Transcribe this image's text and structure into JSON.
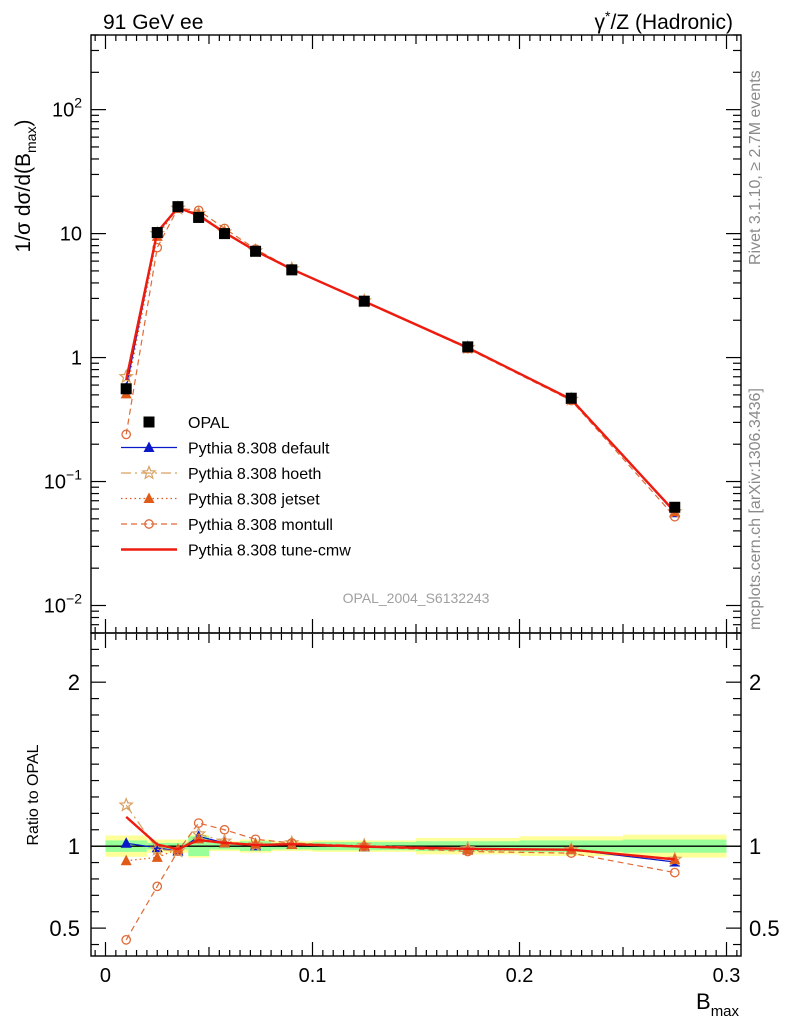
{
  "header": {
    "left": "91 GeV ee",
    "right_prefix": "γ",
    "right_sup": "*",
    "right_suffix": "/Z (Hadronic)"
  },
  "side_labels": {
    "rivet": "Rivet 3.1.10, ≥ 2.7M events",
    "mcplots": "mcplots.cern.ch [arXiv:1306.3436]"
  },
  "analysis_label": "OPAL_2004_S6132243",
  "axes": {
    "ylabel_main_prefix": "1/σ dσ/d(B",
    "ylabel_main_sub": "max",
    "ylabel_main_suffix": ")",
    "ylabel_ratio": "Ratio to OPAL",
    "xlabel_main": "B",
    "xlabel_sub": "max"
  },
  "colors": {
    "opal": "#000000",
    "default": "#0a18c8",
    "hoeth": "#d9a060",
    "jetset": "#e05a18",
    "montull": "#e06a38",
    "tunecmw": "#ee1c10",
    "band_outer": "#ffff99",
    "band_inner": "#99ff99"
  },
  "chart_data": {
    "type": "line",
    "x": [
      0.01,
      0.025,
      0.035,
      0.045,
      0.0575,
      0.0725,
      0.09,
      0.125,
      0.175,
      0.225,
      0.275
    ],
    "bins": [
      [
        0.0,
        0.02
      ],
      [
        0.02,
        0.03
      ],
      [
        0.03,
        0.04
      ],
      [
        0.04,
        0.05
      ],
      [
        0.05,
        0.065
      ],
      [
        0.065,
        0.08
      ],
      [
        0.08,
        0.1
      ],
      [
        0.1,
        0.15
      ],
      [
        0.15,
        0.2
      ],
      [
        0.2,
        0.25
      ],
      [
        0.25,
        0.3
      ]
    ],
    "xlim": [
      -0.007,
      0.307
    ],
    "ylim_main": [
      0.006,
      400
    ],
    "ylog": true,
    "ylim_ratio": [
      0.33,
      2.3
    ],
    "x_ticks": [
      {
        "value": 0,
        "label": "0"
      },
      {
        "value": 0.1,
        "label": "0.1"
      },
      {
        "value": 0.2,
        "label": "0.2"
      },
      {
        "value": 0.3,
        "label": "0.3"
      }
    ],
    "y_ticks_main": [
      {
        "value": 0.01,
        "base": "10",
        "exp": "−2"
      },
      {
        "value": 0.1,
        "base": "10",
        "exp": "−1"
      },
      {
        "value": 1,
        "base": "1",
        "exp": ""
      },
      {
        "value": 10,
        "base": "10",
        "exp": ""
      },
      {
        "value": 100,
        "base": "10",
        "exp": "2"
      }
    ],
    "y_ticks_ratio": [
      {
        "value": 0.5,
        "label": "0.5"
      },
      {
        "value": 1,
        "label": "1"
      },
      {
        "value": 2,
        "label": "2"
      }
    ],
    "band_inner": [
      0.035,
      0.02,
      0.02,
      0.06,
      0.02,
      0.03,
      0.02,
      0.025,
      0.03,
      0.035,
      0.04
    ],
    "band_outer": [
      0.065,
      0.04,
      0.04,
      0.07,
      0.03,
      0.04,
      0.03,
      0.035,
      0.05,
      0.06,
      0.07
    ],
    "series": [
      {
        "key": "opal",
        "name": "OPAL",
        "style": "data",
        "values": [
          0.56,
          10.2,
          16.5,
          13.5,
          10.0,
          7.2,
          5.1,
          2.85,
          1.22,
          0.47,
          0.062
        ]
      },
      {
        "key": "default",
        "name": "Pythia 8.308 default",
        "style": "line",
        "marker": "tri",
        "dash": "",
        "values": [
          0.57,
          10.1,
          16.0,
          14.3,
          10.2,
          7.22,
          5.15,
          2.84,
          1.2,
          0.46,
          0.056
        ]
      },
      {
        "key": "hoeth",
        "name": "Pythia 8.308 hoeth",
        "style": "line",
        "marker": "star",
        "dash": "10 4 2 4",
        "values": [
          0.7,
          10.0,
          16.0,
          14.5,
          10.3,
          7.25,
          5.2,
          2.86,
          1.2,
          0.46,
          0.057
        ]
      },
      {
        "key": "jetset",
        "name": "Pythia 8.308 jetset",
        "style": "line",
        "marker": "tri",
        "dash": "1.5 3",
        "values": [
          0.51,
          9.5,
          16.2,
          14.1,
          10.2,
          7.3,
          5.15,
          2.86,
          1.19,
          0.46,
          0.057
        ]
      },
      {
        "key": "montull",
        "name": "Pythia 8.308 montull",
        "style": "line",
        "marker": "circle",
        "dash": "6 4",
        "values": [
          0.24,
          7.7,
          16.0,
          15.4,
          11.0,
          7.5,
          5.2,
          2.84,
          1.18,
          0.45,
          0.052
        ]
      },
      {
        "key": "tunecmw",
        "name": "Pythia 8.308 tune-cmw",
        "style": "line",
        "marker": "none",
        "dash": "",
        "values": [
          0.66,
          10.3,
          16.2,
          14.0,
          10.2,
          7.25,
          5.16,
          2.84,
          1.2,
          0.46,
          0.057
        ]
      }
    ]
  }
}
